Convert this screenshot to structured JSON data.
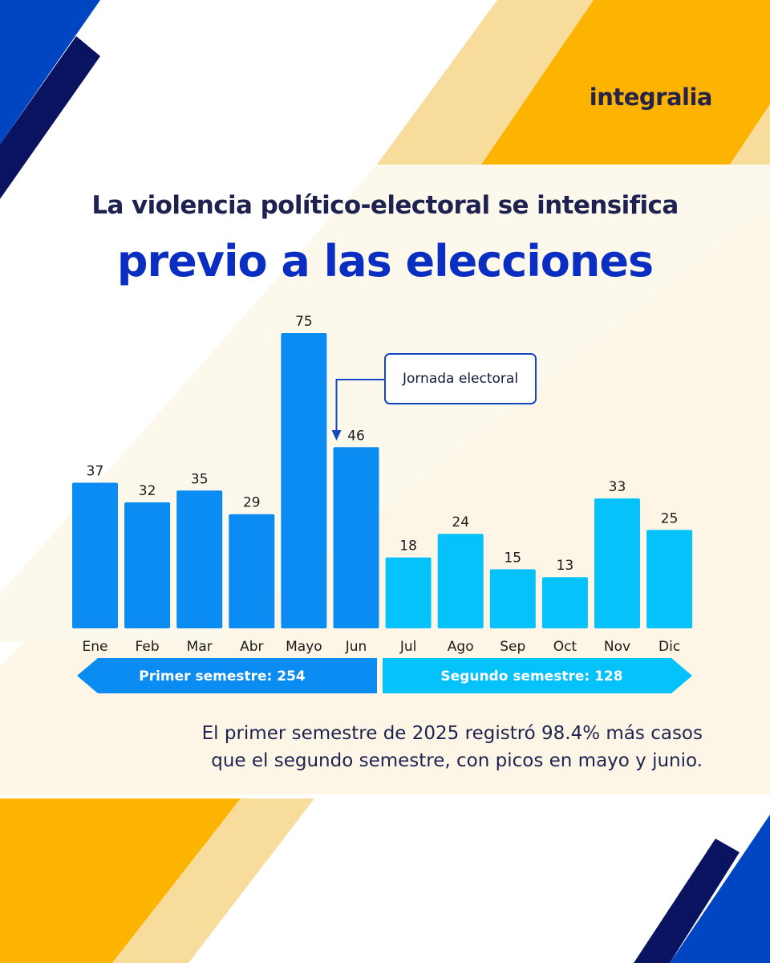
{
  "brand": {
    "logo_text": "integralia"
  },
  "header": {
    "title_line1": "La violencia político-electoral se intensifica",
    "title_line2": "previo a las elecciones"
  },
  "colors": {
    "first_half": "#0a8cf2",
    "second_half": "#05c2fb",
    "dark_blue": "#0a1360",
    "royal_blue": "#0046c2",
    "yellow": "#fdb400",
    "light_yellow": "#f8dc9b",
    "cream": "#fdf6e6",
    "text_dark": "#1d2250",
    "accent_blue": "#0b2ec2"
  },
  "annotation": {
    "text": "Jornada electoral",
    "target_category": "Jun"
  },
  "chart_data": {
    "type": "bar",
    "categories": [
      "Ene",
      "Feb",
      "Mar",
      "Abr",
      "Mayo",
      "Jun",
      "Jul",
      "Ago",
      "Sep",
      "Oct",
      "Nov",
      "Dic"
    ],
    "values": [
      37,
      32,
      35,
      29,
      75,
      46,
      18,
      24,
      15,
      13,
      33,
      25
    ],
    "title": "La violencia político-electoral se intensifica previo a las elecciones",
    "xlabel": "",
    "ylabel": "",
    "ylim": [
      0,
      75
    ],
    "grid": false,
    "groups": [
      {
        "label": "Primer semestre: 254",
        "categories": [
          "Ene",
          "Feb",
          "Mar",
          "Abr",
          "Mayo",
          "Jun"
        ]
      },
      {
        "label": "Segundo semestre: 128",
        "categories": [
          "Jul",
          "Ago",
          "Sep",
          "Oct",
          "Nov",
          "Dic"
        ]
      }
    ]
  },
  "footer_note": {
    "line1": "El primer semestre de 2025 registró 98.4% más casos",
    "line2": "que el segundo semestre, con picos en mayo y junio."
  }
}
